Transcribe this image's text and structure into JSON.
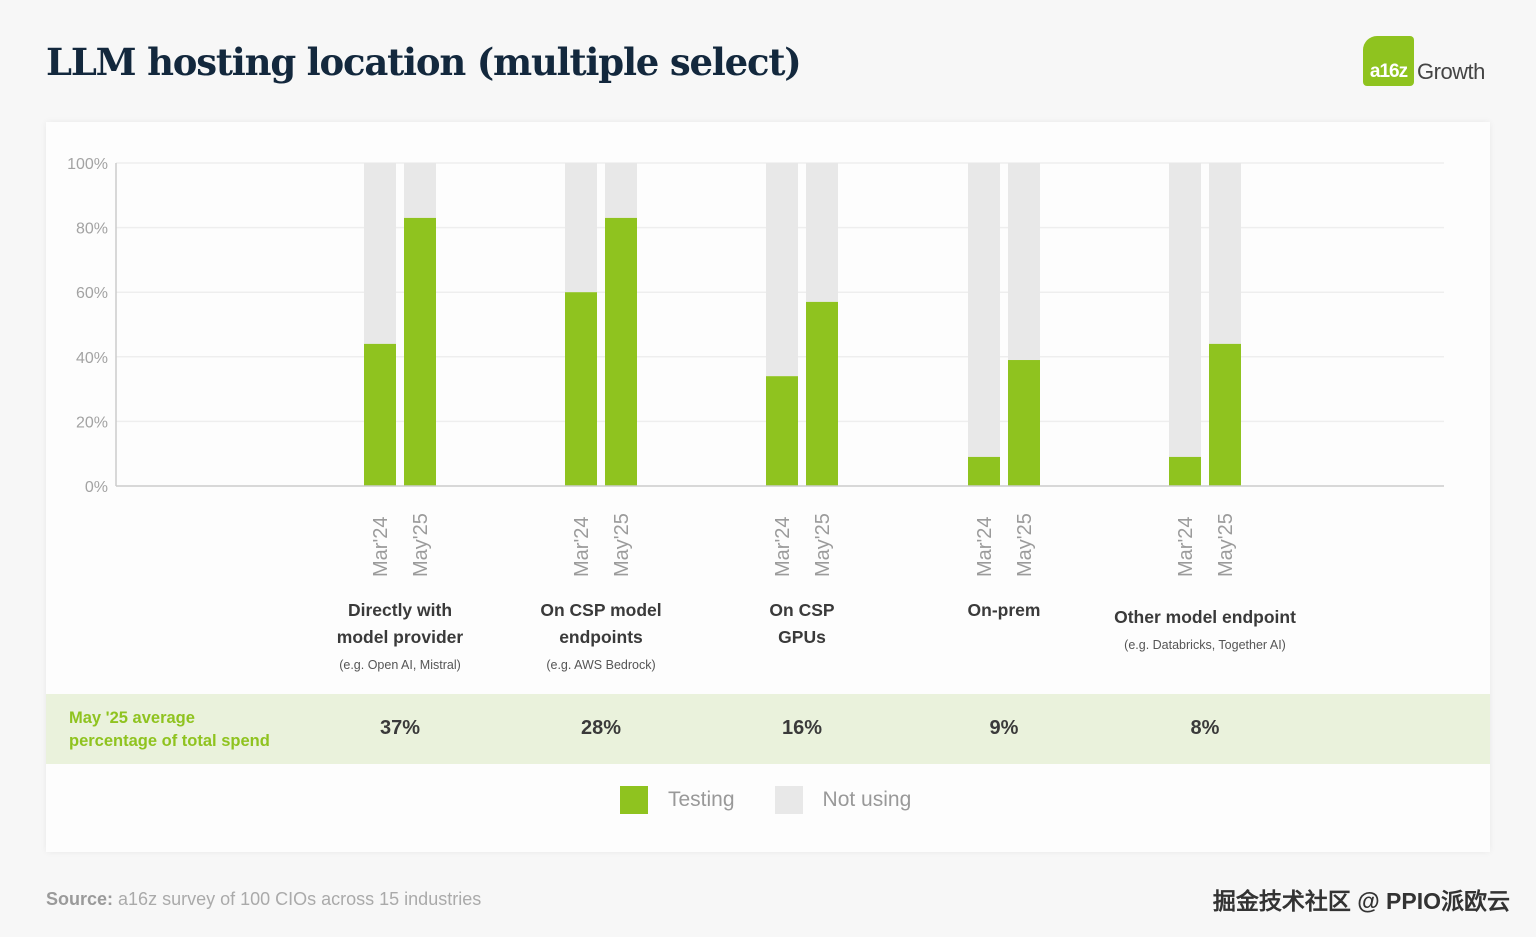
{
  "header": {
    "title": "LLM hosting location (multiple select)",
    "logo_mark": "a16z",
    "logo_text": "Growth"
  },
  "colors": {
    "testing": "#8fc31f",
    "not_using": "#e8e8e8",
    "band_bg": "#eaf2dc",
    "band_label": "#8fc31f"
  },
  "chart_data": {
    "type": "bar",
    "stacked": true,
    "title": "LLM hosting location (multiple select)",
    "ylim": [
      0,
      100
    ],
    "yticks": [
      "0%",
      "20%",
      "40%",
      "60%",
      "80%",
      "100%"
    ],
    "ytick_values": [
      0,
      20,
      40,
      60,
      80,
      100
    ],
    "grid": true,
    "periods": [
      "Mar'24",
      "May'25"
    ],
    "categories": [
      {
        "title_lines": [
          "Directly with",
          "model provider"
        ],
        "subtitle": "(e.g. Open AI, Mistral)"
      },
      {
        "title_lines": [
          "On CSP model",
          "endpoints"
        ],
        "subtitle": "(e.g. AWS Bedrock)"
      },
      {
        "title_lines": [
          "On CSP",
          "GPUs"
        ],
        "subtitle": ""
      },
      {
        "title_lines": [
          "On-prem"
        ],
        "subtitle": ""
      },
      {
        "title_lines": [
          "Other model endpoint"
        ],
        "subtitle": "(e.g. Databricks, Together AI)"
      }
    ],
    "series": [
      {
        "name": "Testing",
        "period_values": {
          "Mar'24": [
            44,
            60,
            34,
            9,
            9
          ],
          "May'25": [
            83,
            83,
            57,
            39,
            44
          ]
        }
      },
      {
        "name": "Not using",
        "period_values": {
          "Mar'24": [
            56,
            40,
            66,
            91,
            91
          ],
          "May'25": [
            17,
            17,
            43,
            61,
            56
          ]
        }
      }
    ],
    "legend": [
      "Testing",
      "Not using"
    ],
    "legend_position": "bottom"
  },
  "spend_band": {
    "label_line1": "May '25 average",
    "label_line2": "percentage of total spend",
    "values": [
      "37%",
      "28%",
      "16%",
      "9%",
      "8%"
    ]
  },
  "footer": {
    "source_bold": "Source:",
    "source_text": " a16z survey of 100 CIOs across 15 industries",
    "watermark": "掘金技术社区 @ PPIO派欧云"
  }
}
